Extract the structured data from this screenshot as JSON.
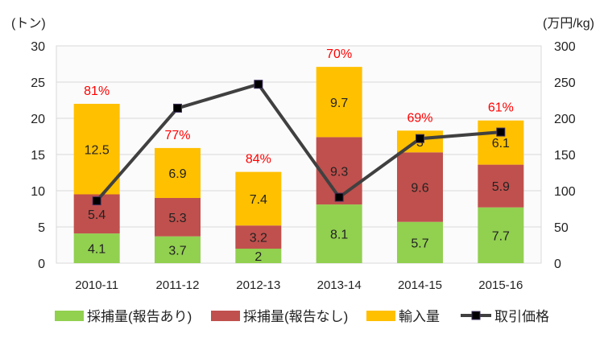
{
  "chart_data": {
    "type": "bar",
    "stacked": true,
    "categories": [
      "2010-11",
      "2011-12",
      "2012-13",
      "2013-14",
      "2014-15",
      "2015-16"
    ],
    "series": [
      {
        "name": "採捕量(報告あり)",
        "type": "bar",
        "axis": "left",
        "color": "#92D050",
        "values": [
          4.1,
          3.7,
          2,
          8.1,
          5.7,
          7.7
        ]
      },
      {
        "name": "採捕量(報告なし)",
        "type": "bar",
        "axis": "left",
        "color": "#C0504D",
        "values": [
          5.4,
          5.3,
          3.2,
          9.3,
          9.6,
          5.9
        ]
      },
      {
        "name": "輸入量",
        "type": "bar",
        "axis": "left",
        "color": "#FFC000",
        "values": [
          12.5,
          6.9,
          7.4,
          9.7,
          3,
          6.1
        ]
      },
      {
        "name": "取引価格",
        "type": "line",
        "axis": "right",
        "color": "#404040",
        "values": [
          86,
          214,
          247,
          91,
          172,
          181
        ]
      }
    ],
    "annotations": [
      "81%",
      "77%",
      "84%",
      "70%",
      "69%",
      "61%"
    ],
    "annotation_color": "#FF0000",
    "ylabel": "(トン)",
    "y2label": "(万円/kg)",
    "ylim": [
      0,
      30
    ],
    "y2lim": [
      0,
      300
    ],
    "yticks": [
      0,
      5,
      10,
      15,
      20,
      25,
      30
    ],
    "y2ticks": [
      0,
      50,
      100,
      150,
      200,
      250,
      300
    ],
    "grid": true,
    "legend": "bottom"
  }
}
